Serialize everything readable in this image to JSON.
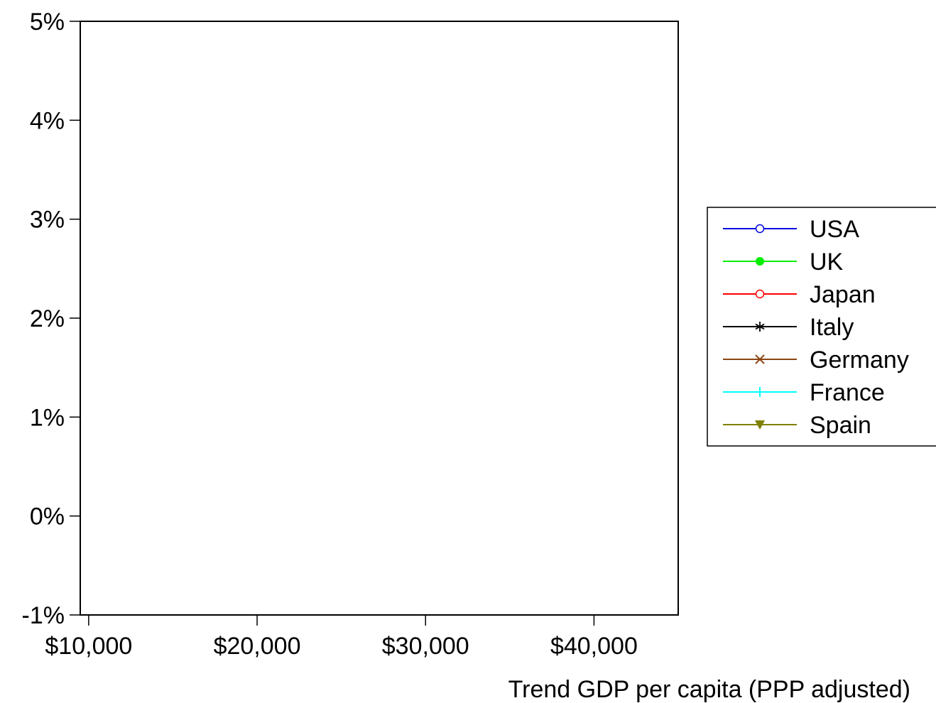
{
  "chart_data": {
    "type": "line",
    "xlabel": "Trend GDP per capita (PPP adjusted)",
    "ylabel": "",
    "xlim": [
      9500,
      45000
    ],
    "ylim": [
      -1,
      5
    ],
    "x_ticks": [
      10000,
      20000,
      30000,
      40000
    ],
    "x_tick_labels": [
      "$10,000",
      "$20,000",
      "$30,000",
      "$40,000"
    ],
    "y_ticks": [
      -1,
      0,
      1,
      2,
      3,
      4,
      5
    ],
    "y_tick_labels": [
      "-1%",
      "0%",
      "1%",
      "2%",
      "3%",
      "4%",
      "5%"
    ],
    "grid": false,
    "legend_position": "right",
    "series": [
      {
        "name": "USA",
        "color": "#0000dd",
        "marker": "open-circle",
        "points": []
      },
      {
        "name": "UK",
        "color": "#00ee00",
        "marker": "filled-circle",
        "points": []
      },
      {
        "name": "Japan",
        "color": "#ff0000",
        "marker": "open-circle",
        "points": []
      },
      {
        "name": "Italy",
        "color": "#000000",
        "marker": "asterisk",
        "points": []
      },
      {
        "name": "Germany",
        "color": "#8b4513",
        "marker": "x",
        "points": []
      },
      {
        "name": "France",
        "color": "#00ffff",
        "marker": "plus",
        "points": []
      },
      {
        "name": "Spain",
        "color": "#808000",
        "marker": "filled-triangle-down",
        "points": []
      }
    ]
  }
}
